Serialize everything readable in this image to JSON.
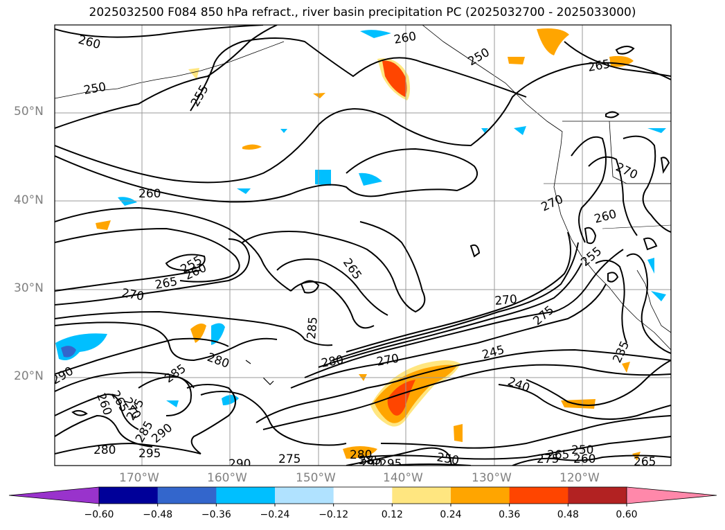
{
  "title": "2025032500 F084 850 hPa refract., river basin precipitation PC (2025032700 - 2025033000)",
  "map": {
    "lat_labels": [
      "50°N",
      "40°N",
      "30°N",
      "20°N"
    ],
    "lon_labels": [
      "170°W",
      "160°W",
      "150°W",
      "140°W",
      "130°W",
      "120°W"
    ],
    "contour_labels": [
      "260",
      "250",
      "255",
      "260",
      "265",
      "260",
      "250",
      "255",
      "260",
      "265",
      "270",
      "265",
      "270",
      "285",
      "280",
      "285",
      "280",
      "270",
      "245",
      "275",
      "240",
      "235",
      "290",
      "260",
      "265",
      "270",
      "275",
      "285",
      "290",
      "280",
      "295",
      "290",
      "275",
      "280",
      "285",
      "290",
      "295",
      "250",
      "275",
      "265",
      "260",
      "265",
      "250"
    ]
  },
  "colorbar": {
    "tick_labels": [
      "−0.60",
      "−0.48",
      "−0.36",
      "−0.24",
      "−0.12",
      "0.12",
      "0.24",
      "0.36",
      "0.48",
      "0.60"
    ],
    "colors": [
      "#9933cc",
      "#000099",
      "#3366cc",
      "#00bfff",
      "#b0e2ff",
      "#ffffff",
      "#ffe680",
      "#ffa500",
      "#ff4500",
      "#b22222",
      "#ff88aa"
    ]
  }
}
